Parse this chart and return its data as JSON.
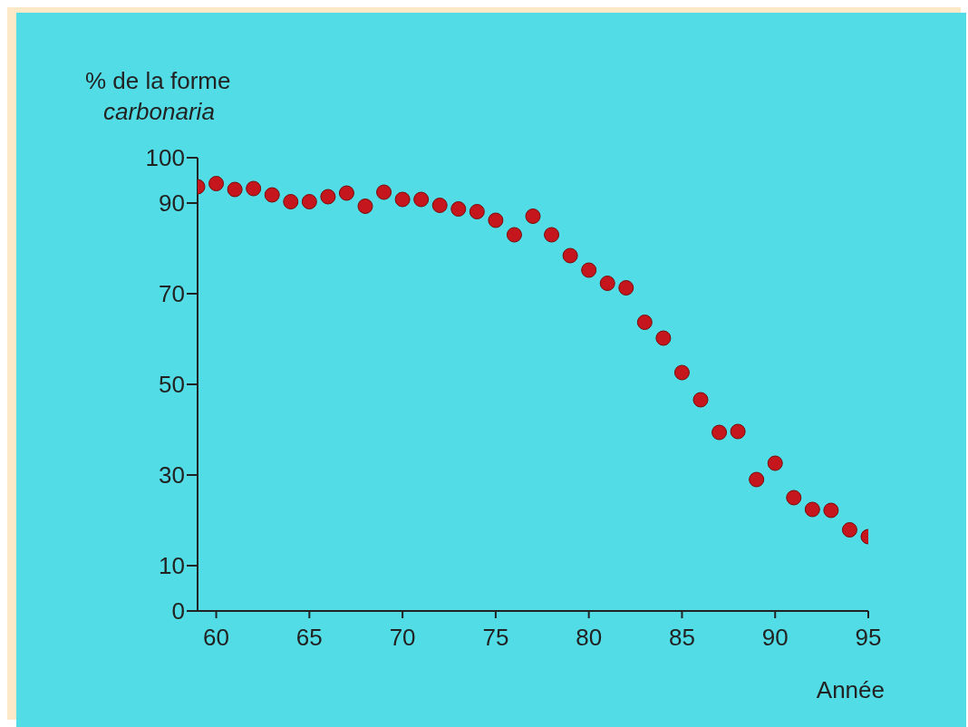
{
  "chart_data": {
    "type": "scatter",
    "ylabel": "% de la forme carbonaria",
    "xlabel": "Année",
    "x": [
      59,
      60,
      61,
      62,
      63,
      64,
      65,
      66,
      67,
      68,
      69,
      70,
      71,
      72,
      73,
      74,
      75,
      76,
      77,
      78,
      79,
      80,
      81,
      82,
      83,
      84,
      85,
      86,
      87,
      88,
      89,
      90,
      91,
      92,
      93,
      94,
      95
    ],
    "series": [
      {
        "color": "#c4161c",
        "values": [
          93.6,
          94.3,
          93.0,
          93.2,
          91.8,
          90.3,
          90.3,
          91.4,
          92.2,
          89.3,
          92.4,
          90.8,
          90.8,
          89.5,
          88.7,
          88.1,
          86.2,
          83.0,
          87.1,
          83.0,
          78.4,
          75.2,
          72.3,
          71.3,
          63.7,
          60.2,
          52.6,
          46.6,
          39.4,
          39.6,
          29.0,
          32.6,
          25.0,
          22.4,
          22.2,
          17.9,
          16.4
        ]
      }
    ],
    "xlim": [
      59,
      95
    ],
    "xticks": [
      60,
      65,
      70,
      75,
      80,
      85,
      90,
      95
    ],
    "ylim": [
      0,
      100
    ],
    "yticks": [
      0,
      10,
      30,
      50,
      70,
      90,
      100
    ],
    "grid": false,
    "legend": false,
    "marker": "circle"
  }
}
